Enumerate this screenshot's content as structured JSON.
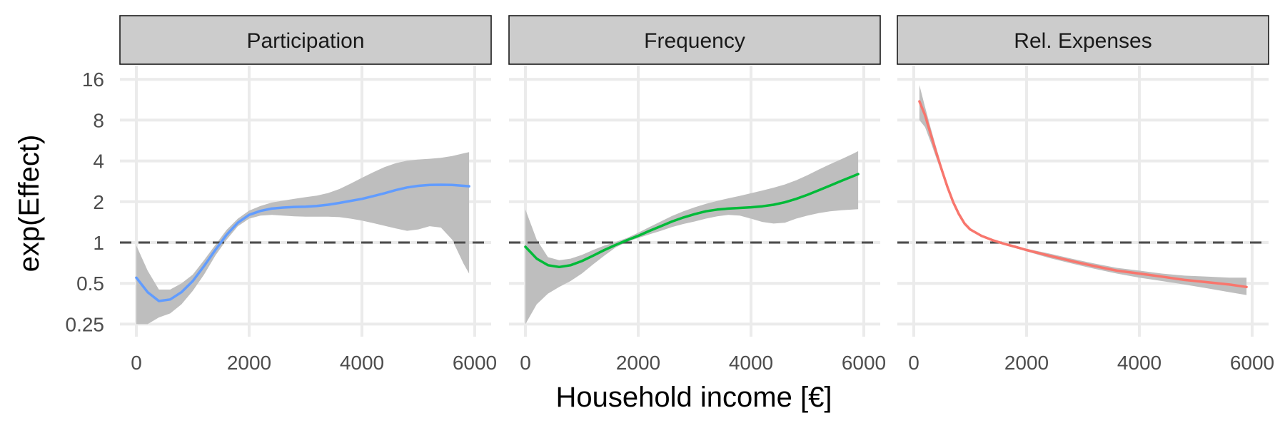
{
  "chart_data": {
    "type": "line",
    "facets": [
      "Participation",
      "Frequency",
      "Rel. Expenses"
    ],
    "xlabel": "Household income [€]",
    "ylabel": "exp(Effect)",
    "y_scale": "log2",
    "xlim": [
      -200,
      6300
    ],
    "ylim": [
      0.2,
      20
    ],
    "x_ticks": [
      0,
      2000,
      4000,
      6000
    ],
    "x_tick_labels": [
      "0",
      "2000",
      "4000",
      "6000"
    ],
    "y_ticks": [
      0.25,
      0.5,
      1,
      2,
      4,
      8,
      16
    ],
    "y_tick_labels": [
      "0.25",
      "0.5",
      "1",
      "2",
      "4",
      "8",
      "16"
    ],
    "reference_line": 1,
    "grid": true,
    "series": [
      {
        "facet": "Participation",
        "color": "#619CFF",
        "x": [
          0,
          200,
          400,
          600,
          800,
          1000,
          1200,
          1400,
          1600,
          1800,
          2000,
          2200,
          2400,
          2600,
          2800,
          3000,
          3200,
          3400,
          3600,
          3800,
          4000,
          4200,
          4400,
          4600,
          4800,
          5000,
          5200,
          5400,
          5600,
          5800,
          5900
        ],
        "y": [
          0.55,
          0.43,
          0.37,
          0.38,
          0.43,
          0.52,
          0.67,
          0.88,
          1.14,
          1.4,
          1.6,
          1.71,
          1.78,
          1.81,
          1.83,
          1.84,
          1.86,
          1.9,
          1.96,
          2.03,
          2.1,
          2.2,
          2.31,
          2.44,
          2.55,
          2.62,
          2.66,
          2.67,
          2.66,
          2.62,
          2.6
        ],
        "lower": [
          0.25,
          0.25,
          0.28,
          0.3,
          0.35,
          0.44,
          0.58,
          0.8,
          1.05,
          1.32,
          1.5,
          1.58,
          1.6,
          1.58,
          1.56,
          1.55,
          1.55,
          1.55,
          1.54,
          1.5,
          1.45,
          1.39,
          1.33,
          1.27,
          1.22,
          1.25,
          1.32,
          1.29,
          1.05,
          0.7,
          0.59
        ],
        "upper": [
          0.95,
          0.62,
          0.45,
          0.45,
          0.5,
          0.58,
          0.74,
          0.96,
          1.24,
          1.5,
          1.72,
          1.86,
          1.97,
          2.04,
          2.1,
          2.16,
          2.22,
          2.32,
          2.48,
          2.72,
          3.0,
          3.3,
          3.6,
          3.85,
          4.02,
          4.1,
          4.15,
          4.22,
          4.35,
          4.55,
          4.65
        ]
      },
      {
        "facet": "Frequency",
        "color": "#00BA38",
        "x": [
          0,
          200,
          400,
          600,
          800,
          1000,
          1200,
          1400,
          1600,
          1800,
          2000,
          2200,
          2400,
          2600,
          2800,
          3000,
          3200,
          3400,
          3600,
          3800,
          4000,
          4200,
          4400,
          4600,
          4800,
          5000,
          5200,
          5400,
          5600,
          5800,
          5900
        ],
        "y": [
          0.93,
          0.76,
          0.68,
          0.66,
          0.68,
          0.73,
          0.8,
          0.88,
          0.96,
          1.04,
          1.12,
          1.22,
          1.32,
          1.43,
          1.53,
          1.62,
          1.7,
          1.75,
          1.78,
          1.8,
          1.82,
          1.85,
          1.9,
          1.98,
          2.1,
          2.25,
          2.43,
          2.63,
          2.85,
          3.08,
          3.2
        ],
        "lower": [
          0.25,
          0.35,
          0.42,
          0.47,
          0.52,
          0.59,
          0.69,
          0.8,
          0.92,
          1.01,
          1.08,
          1.15,
          1.22,
          1.3,
          1.37,
          1.43,
          1.5,
          1.56,
          1.6,
          1.58,
          1.5,
          1.42,
          1.38,
          1.4,
          1.5,
          1.58,
          1.65,
          1.7,
          1.73,
          1.75,
          1.76
        ],
        "upper": [
          1.75,
          1.05,
          0.78,
          0.74,
          0.76,
          0.81,
          0.88,
          0.95,
          1.01,
          1.08,
          1.18,
          1.3,
          1.43,
          1.57,
          1.7,
          1.82,
          1.93,
          2.03,
          2.12,
          2.21,
          2.31,
          2.42,
          2.54,
          2.68,
          2.88,
          3.14,
          3.45,
          3.78,
          4.12,
          4.5,
          4.72
        ]
      },
      {
        "facet": "Rel. Expenses",
        "color": "#F8766D",
        "x": [
          100,
          200,
          300,
          400,
          500,
          600,
          700,
          800,
          900,
          1000,
          1200,
          1400,
          1600,
          1800,
          2000,
          2400,
          2800,
          3200,
          3600,
          4000,
          4400,
          4800,
          5200,
          5600,
          5900
        ],
        "y": [
          11.0,
          8.7,
          6.3,
          4.6,
          3.4,
          2.55,
          1.98,
          1.62,
          1.38,
          1.25,
          1.12,
          1.04,
          0.98,
          0.93,
          0.88,
          0.8,
          0.73,
          0.67,
          0.62,
          0.59,
          0.56,
          0.53,
          0.51,
          0.49,
          0.47
        ],
        "lower": [
          8.0,
          7.1,
          5.5,
          4.2,
          3.2,
          2.45,
          1.93,
          1.59,
          1.36,
          1.23,
          1.1,
          1.02,
          0.96,
          0.91,
          0.86,
          0.77,
          0.7,
          0.64,
          0.59,
          0.55,
          0.52,
          0.49,
          0.46,
          0.43,
          0.41
        ],
        "upper": [
          14.5,
          10.0,
          7.0,
          5.0,
          3.6,
          2.65,
          2.03,
          1.66,
          1.41,
          1.27,
          1.14,
          1.06,
          1.0,
          0.95,
          0.9,
          0.83,
          0.76,
          0.7,
          0.65,
          0.62,
          0.59,
          0.57,
          0.56,
          0.55,
          0.55
        ]
      }
    ]
  }
}
